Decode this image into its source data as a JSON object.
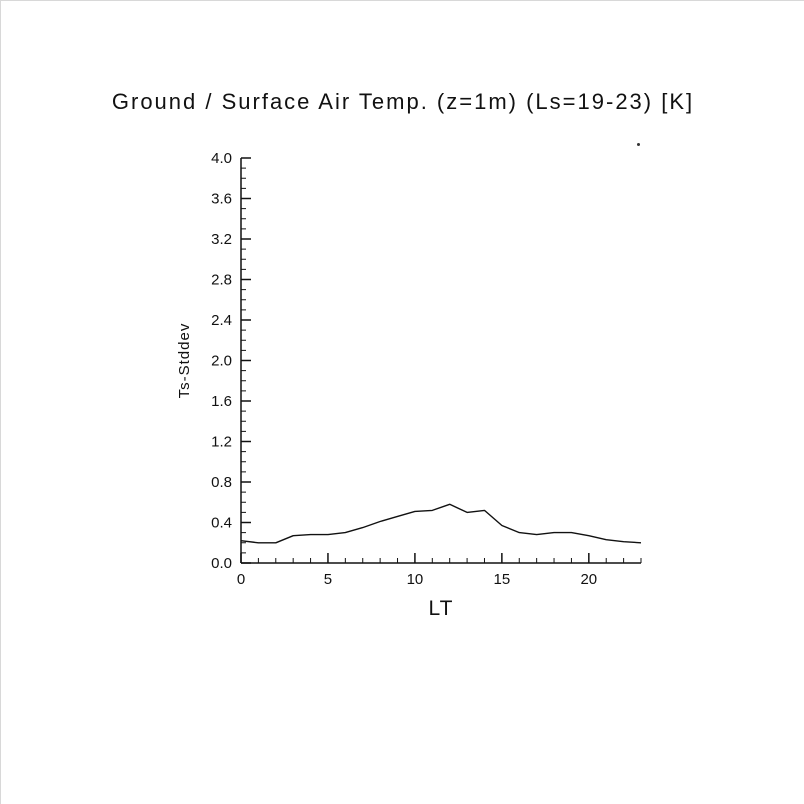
{
  "chart_data": {
    "type": "line",
    "title": "Ground / Surface Air Temp. (z=1m) (Ls=19-23) [K]",
    "xlabel": "LT",
    "ylabel": "Ts-Stddev",
    "xlim": [
      0,
      23
    ],
    "ylim": [
      0.0,
      4.0
    ],
    "x": [
      0,
      1,
      2,
      3,
      4,
      5,
      6,
      7,
      8,
      9,
      10,
      11,
      12,
      13,
      14,
      15,
      16,
      17,
      18,
      19,
      20,
      21,
      22,
      23
    ],
    "values": [
      0.22,
      0.2,
      0.2,
      0.27,
      0.28,
      0.28,
      0.3,
      0.35,
      0.41,
      0.46,
      0.51,
      0.52,
      0.58,
      0.5,
      0.52,
      0.37,
      0.3,
      0.28,
      0.3,
      0.3,
      0.27,
      0.23,
      0.21,
      0.2
    ],
    "x_major_ticks": [
      0,
      5,
      10,
      15,
      20
    ],
    "x_tick_labels": [
      "0",
      "5",
      "10",
      "15",
      "20"
    ],
    "x_minor_step": 1,
    "y_major_ticks": [
      0.0,
      0.4,
      0.8,
      1.2,
      1.6,
      2.0,
      2.4,
      2.8,
      3.2,
      3.6,
      4.0
    ],
    "y_tick_labels": [
      "0.0",
      "0.4",
      "0.8",
      "1.2",
      "1.6",
      "2.0",
      "2.4",
      "2.8",
      "3.2",
      "3.6",
      "4.0"
    ],
    "y_minor_step": 0.1,
    "grid": false,
    "legend": "none",
    "line_color": "#111111",
    "background_color": "#ffffff"
  }
}
